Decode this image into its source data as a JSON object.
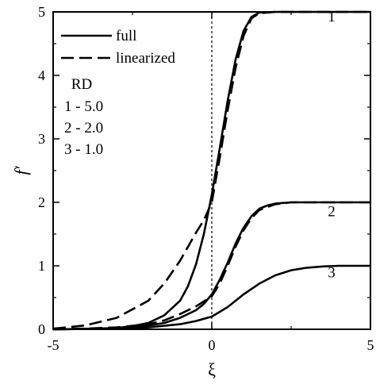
{
  "chart_data": {
    "type": "line",
    "title": "",
    "xlabel": "ξ",
    "ylabel": "f′",
    "xlim": [
      -5,
      5
    ],
    "ylim": [
      0,
      5
    ],
    "xticks": [
      -5,
      0,
      5
    ],
    "yticks": [
      0,
      1,
      2,
      3,
      4,
      5
    ],
    "vline_x": 0,
    "legend": {
      "placement": "top-left",
      "entries": [
        {
          "label": "full",
          "style": "solid"
        },
        {
          "label": "linearized",
          "style": "dashed"
        }
      ],
      "rd_header": "RD",
      "rd_entries": [
        "1 - 5.0",
        "2 - 2.0",
        "3 - 1.0"
      ]
    },
    "curve_labels": [
      {
        "text": "1",
        "x": 3.5,
        "y": 4.85
      },
      {
        "text": "2",
        "x": 3.5,
        "y": 1.78
      },
      {
        "text": "3",
        "x": 3.5,
        "y": 0.82
      }
    ],
    "series": [
      {
        "style": "solid",
        "x": [
          -5,
          -4,
          -3,
          -2.5,
          -2,
          -1.5,
          -1,
          -0.75,
          -0.5,
          -0.25,
          0,
          0.25,
          0.5,
          0.75,
          1,
          1.25,
          1.5,
          2,
          3,
          5
        ],
        "y": [
          0,
          0.005,
          0.02,
          0.05,
          0.1,
          0.22,
          0.45,
          0.68,
          1.02,
          1.5,
          2.12,
          2.85,
          3.6,
          4.25,
          4.7,
          4.92,
          4.99,
          5.0,
          5.0,
          5.0
        ]
      },
      {
        "style": "dashed",
        "x": [
          -5,
          -4,
          -3,
          -2,
          -1.5,
          -1,
          -0.5,
          -0.25,
          0,
          0.25,
          0.5,
          0.75,
          1,
          1.25,
          1.5,
          2,
          3,
          5
        ],
        "y": [
          0.01,
          0.06,
          0.18,
          0.45,
          0.72,
          1.08,
          1.52,
          1.72,
          2.0,
          2.7,
          3.45,
          4.12,
          4.62,
          4.9,
          4.98,
          5.0,
          5.0,
          5.0
        ]
      },
      {
        "style": "solid",
        "x": [
          -5,
          -4,
          -3,
          -2,
          -1.5,
          -1,
          -0.5,
          -0.25,
          0,
          0.25,
          0.5,
          0.75,
          1,
          1.25,
          1.5,
          1.75,
          2,
          2.5,
          3,
          5
        ],
        "y": [
          0,
          0.005,
          0.02,
          0.06,
          0.1,
          0.18,
          0.3,
          0.4,
          0.55,
          0.78,
          1.05,
          1.35,
          1.6,
          1.78,
          1.9,
          1.95,
          1.98,
          2.0,
          2.0,
          2.0
        ]
      },
      {
        "style": "dashed",
        "x": [
          -5,
          -4,
          -3,
          -2,
          -1.5,
          -1,
          -0.5,
          0,
          0.25,
          0.5,
          0.75,
          1,
          1.25,
          1.5,
          2,
          2.5,
          3,
          5
        ],
        "y": [
          0,
          0.01,
          0.03,
          0.08,
          0.14,
          0.24,
          0.36,
          0.52,
          0.72,
          1.0,
          1.3,
          1.56,
          1.75,
          1.88,
          1.97,
          2.0,
          2.0,
          2.0
        ]
      },
      {
        "style": "solid",
        "x": [
          -5,
          -4,
          -3,
          -2,
          -1,
          -0.5,
          0,
          0.5,
          1,
          1.5,
          2,
          2.5,
          3,
          3.5,
          4,
          5
        ],
        "y": [
          0,
          0.005,
          0.01,
          0.03,
          0.08,
          0.13,
          0.2,
          0.35,
          0.55,
          0.72,
          0.85,
          0.93,
          0.97,
          0.99,
          1.0,
          1.0
        ]
      }
    ]
  }
}
